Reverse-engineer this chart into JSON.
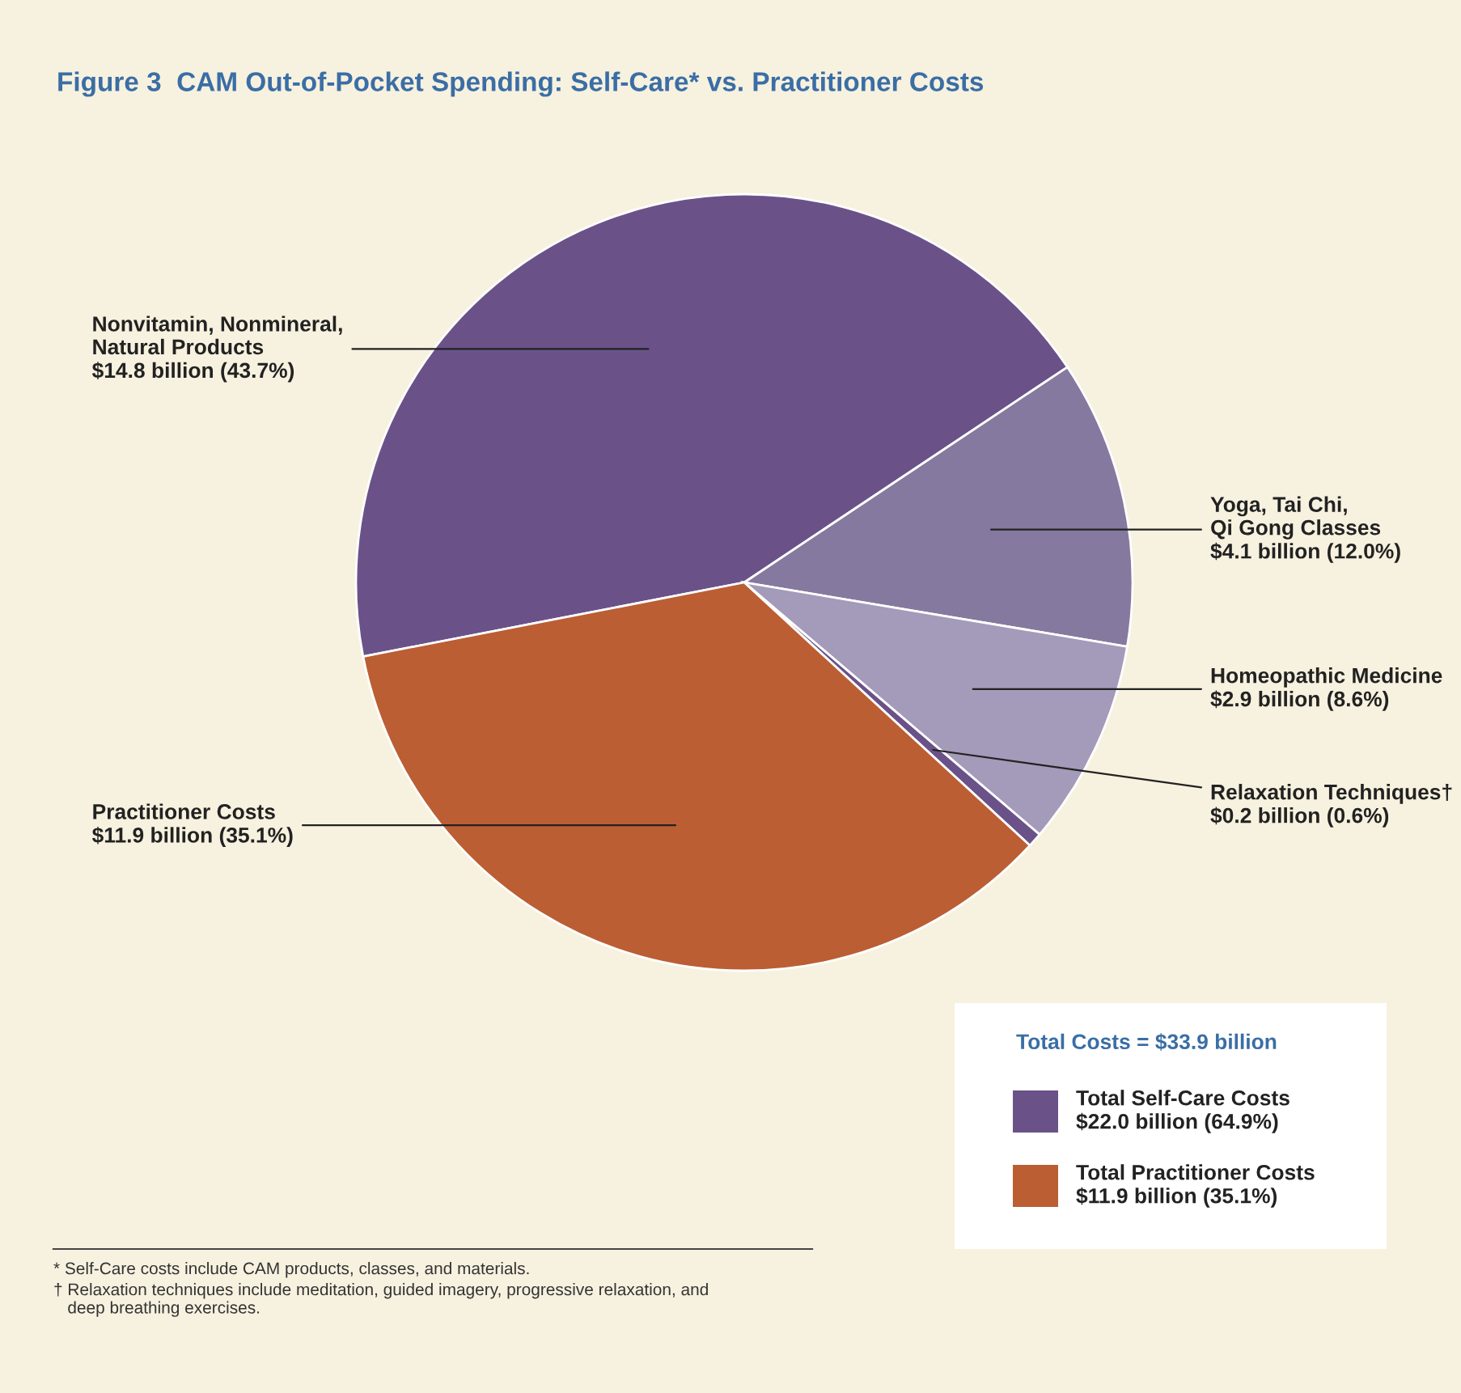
{
  "chart_data": {
    "type": "pie",
    "title": "Figure 3  CAM Out-of-Pocket Spending: Self-Care* vs. Practitioner Costs",
    "categories": [
      "Nonvitamin, Nonmineral,\nNatural Products",
      "Yoga, Tai Chi,\nQi Gong Classes",
      "Homeopathic Medicine",
      "Relaxation Techniques†",
      "Practitioner Costs"
    ],
    "values": [
      43.7,
      12.0,
      8.6,
      0.6,
      35.1
    ],
    "value_labels": [
      "$14.8 billion (43.7%)",
      "$4.1 billion (12.0%)",
      "$2.9 billion (8.6%)",
      "$0.2 billion (0.6%)",
      "$11.9 billion (35.1%)"
    ],
    "colors": [
      "#6a5289",
      "#86799f",
      "#a49ab9",
      "#6a5289",
      "#bb5e33"
    ],
    "annotations": [
      "Total Costs = $33.9 billion",
      "Total Self-Care Costs\n$22.0 billion (64.9%)",
      "Total Practitioner Costs\n$11.9 billion (35.1%)",
      "* Self-Care costs include CAM products, classes, and materials.",
      "† Relaxation techniques include meditation, guided imagery, progressive relaxation, and\n   deep breathing exercises."
    ]
  }
}
